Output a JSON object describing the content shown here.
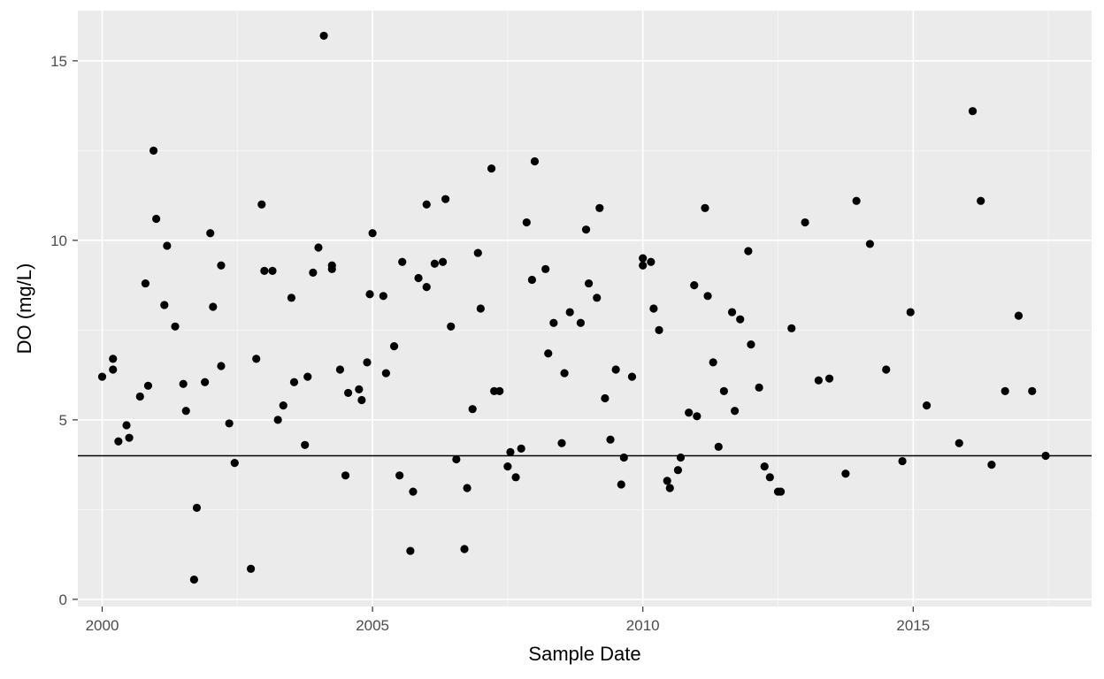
{
  "chart_data": {
    "type": "scatter",
    "xlabel": "Sample Date",
    "ylabel": "DO (mg/L)",
    "xlim": [
      1999.55,
      2018.3
    ],
    "ylim": [
      -0.2,
      16.4
    ],
    "x_ticks": [
      {
        "value": 2000,
        "label": "2000"
      },
      {
        "value": 2005,
        "label": "2005"
      },
      {
        "value": 2010,
        "label": "2010"
      },
      {
        "value": 2015,
        "label": "2015"
      }
    ],
    "y_ticks": [
      {
        "value": 0,
        "label": "0"
      },
      {
        "value": 5,
        "label": "5"
      },
      {
        "value": 10,
        "label": "10"
      },
      {
        "value": 15,
        "label": "15"
      }
    ],
    "reference_line": {
      "y": 4
    },
    "grid": true,
    "legend": "none",
    "colors": {
      "panel": "#ebebeb",
      "grid_major": "#ffffff",
      "grid_minor": "#f5f5f5",
      "point": "#000000",
      "reference_line": "#000000"
    },
    "points": [
      {
        "x": 2000.0,
        "y": 6.2
      },
      {
        "x": 2000.2,
        "y": 6.4
      },
      {
        "x": 2000.2,
        "y": 6.7
      },
      {
        "x": 2000.3,
        "y": 4.4
      },
      {
        "x": 2000.45,
        "y": 4.85
      },
      {
        "x": 2000.5,
        "y": 4.5
      },
      {
        "x": 2000.7,
        "y": 5.65
      },
      {
        "x": 2000.8,
        "y": 8.8
      },
      {
        "x": 2000.85,
        "y": 5.95
      },
      {
        "x": 2000.95,
        "y": 12.5
      },
      {
        "x": 2001.0,
        "y": 10.6
      },
      {
        "x": 2001.15,
        "y": 8.2
      },
      {
        "x": 2001.2,
        "y": 9.85
      },
      {
        "x": 2001.35,
        "y": 7.6
      },
      {
        "x": 2001.5,
        "y": 6.0
      },
      {
        "x": 2001.55,
        "y": 5.25
      },
      {
        "x": 2001.7,
        "y": 0.55
      },
      {
        "x": 2001.75,
        "y": 2.55
      },
      {
        "x": 2001.9,
        "y": 6.05
      },
      {
        "x": 2002.0,
        "y": 10.2
      },
      {
        "x": 2002.05,
        "y": 8.15
      },
      {
        "x": 2002.2,
        "y": 6.5
      },
      {
        "x": 2002.2,
        "y": 9.3
      },
      {
        "x": 2002.35,
        "y": 4.9
      },
      {
        "x": 2002.45,
        "y": 3.8
      },
      {
        "x": 2002.75,
        "y": 0.85
      },
      {
        "x": 2002.85,
        "y": 6.7
      },
      {
        "x": 2002.95,
        "y": 11.0
      },
      {
        "x": 2003.0,
        "y": 9.15
      },
      {
        "x": 2003.15,
        "y": 9.15
      },
      {
        "x": 2003.25,
        "y": 5.0
      },
      {
        "x": 2003.35,
        "y": 5.4
      },
      {
        "x": 2003.5,
        "y": 8.4
      },
      {
        "x": 2003.55,
        "y": 6.05
      },
      {
        "x": 2003.75,
        "y": 4.3
      },
      {
        "x": 2003.8,
        "y": 6.2
      },
      {
        "x": 2003.9,
        "y": 9.1
      },
      {
        "x": 2004.0,
        "y": 9.8
      },
      {
        "x": 2004.1,
        "y": 15.7
      },
      {
        "x": 2004.25,
        "y": 9.3
      },
      {
        "x": 2004.25,
        "y": 9.2
      },
      {
        "x": 2004.4,
        "y": 6.4
      },
      {
        "x": 2004.5,
        "y": 3.45
      },
      {
        "x": 2004.55,
        "y": 5.75
      },
      {
        "x": 2004.75,
        "y": 5.85
      },
      {
        "x": 2004.8,
        "y": 5.55
      },
      {
        "x": 2004.9,
        "y": 6.6
      },
      {
        "x": 2004.95,
        "y": 8.5
      },
      {
        "x": 2005.0,
        "y": 10.2
      },
      {
        "x": 2005.2,
        "y": 8.45
      },
      {
        "x": 2005.25,
        "y": 6.3
      },
      {
        "x": 2005.4,
        "y": 7.05
      },
      {
        "x": 2005.5,
        "y": 3.45
      },
      {
        "x": 2005.55,
        "y": 9.4
      },
      {
        "x": 2005.7,
        "y": 1.35
      },
      {
        "x": 2005.75,
        "y": 3.0
      },
      {
        "x": 2005.85,
        "y": 8.95
      },
      {
        "x": 2006.0,
        "y": 8.7
      },
      {
        "x": 2006.0,
        "y": 11.0
      },
      {
        "x": 2006.15,
        "y": 9.35
      },
      {
        "x": 2006.3,
        "y": 9.4
      },
      {
        "x": 2006.35,
        "y": 11.15
      },
      {
        "x": 2006.45,
        "y": 7.6
      },
      {
        "x": 2006.55,
        "y": 3.9
      },
      {
        "x": 2006.7,
        "y": 1.4
      },
      {
        "x": 2006.75,
        "y": 3.1
      },
      {
        "x": 2006.85,
        "y": 5.3
      },
      {
        "x": 2006.95,
        "y": 9.65
      },
      {
        "x": 2007.0,
        "y": 8.1
      },
      {
        "x": 2007.2,
        "y": 12.0
      },
      {
        "x": 2007.25,
        "y": 5.8
      },
      {
        "x": 2007.35,
        "y": 5.8
      },
      {
        "x": 2007.5,
        "y": 3.7
      },
      {
        "x": 2007.55,
        "y": 4.1
      },
      {
        "x": 2007.65,
        "y": 3.4
      },
      {
        "x": 2007.75,
        "y": 4.2
      },
      {
        "x": 2007.85,
        "y": 10.5
      },
      {
        "x": 2007.95,
        "y": 8.9
      },
      {
        "x": 2008.0,
        "y": 12.2
      },
      {
        "x": 2008.2,
        "y": 9.2
      },
      {
        "x": 2008.25,
        "y": 6.85
      },
      {
        "x": 2008.35,
        "y": 7.7
      },
      {
        "x": 2008.5,
        "y": 4.35
      },
      {
        "x": 2008.55,
        "y": 6.3
      },
      {
        "x": 2008.65,
        "y": 8.0
      },
      {
        "x": 2008.85,
        "y": 7.7
      },
      {
        "x": 2008.95,
        "y": 10.3
      },
      {
        "x": 2009.0,
        "y": 8.8
      },
      {
        "x": 2009.15,
        "y": 8.4
      },
      {
        "x": 2009.2,
        "y": 10.9
      },
      {
        "x": 2009.3,
        "y": 5.6
      },
      {
        "x": 2009.4,
        "y": 4.45
      },
      {
        "x": 2009.5,
        "y": 6.4
      },
      {
        "x": 2009.6,
        "y": 3.2
      },
      {
        "x": 2009.65,
        "y": 3.95
      },
      {
        "x": 2009.8,
        "y": 6.2
      },
      {
        "x": 2010.0,
        "y": 9.5
      },
      {
        "x": 2010.0,
        "y": 9.3
      },
      {
        "x": 2010.15,
        "y": 9.4
      },
      {
        "x": 2010.2,
        "y": 8.1
      },
      {
        "x": 2010.3,
        "y": 7.5
      },
      {
        "x": 2010.45,
        "y": 3.3
      },
      {
        "x": 2010.5,
        "y": 3.1
      },
      {
        "x": 2010.65,
        "y": 3.6
      },
      {
        "x": 2010.7,
        "y": 3.95
      },
      {
        "x": 2010.85,
        "y": 5.2
      },
      {
        "x": 2010.95,
        "y": 8.75
      },
      {
        "x": 2011.0,
        "y": 5.1
      },
      {
        "x": 2011.15,
        "y": 10.9
      },
      {
        "x": 2011.2,
        "y": 8.45
      },
      {
        "x": 2011.3,
        "y": 6.6
      },
      {
        "x": 2011.4,
        "y": 4.25
      },
      {
        "x": 2011.5,
        "y": 5.8
      },
      {
        "x": 2011.65,
        "y": 8.0
      },
      {
        "x": 2011.7,
        "y": 5.25
      },
      {
        "x": 2011.8,
        "y": 7.8
      },
      {
        "x": 2011.95,
        "y": 9.7
      },
      {
        "x": 2012.0,
        "y": 7.1
      },
      {
        "x": 2012.15,
        "y": 5.9
      },
      {
        "x": 2012.25,
        "y": 3.7
      },
      {
        "x": 2012.35,
        "y": 3.4
      },
      {
        "x": 2012.5,
        "y": 3.0
      },
      {
        "x": 2012.55,
        "y": 3.0
      },
      {
        "x": 2012.75,
        "y": 7.55
      },
      {
        "x": 2013.0,
        "y": 10.5
      },
      {
        "x": 2013.25,
        "y": 6.1
      },
      {
        "x": 2013.45,
        "y": 6.15
      },
      {
        "x": 2013.75,
        "y": 3.5
      },
      {
        "x": 2013.95,
        "y": 11.1
      },
      {
        "x": 2014.2,
        "y": 9.9
      },
      {
        "x": 2014.5,
        "y": 6.4
      },
      {
        "x": 2014.8,
        "y": 3.85
      },
      {
        "x": 2014.95,
        "y": 8.0
      },
      {
        "x": 2015.25,
        "y": 5.4
      },
      {
        "x": 2015.85,
        "y": 4.35
      },
      {
        "x": 2016.1,
        "y": 13.6
      },
      {
        "x": 2016.25,
        "y": 11.1
      },
      {
        "x": 2016.45,
        "y": 3.75
      },
      {
        "x": 2016.7,
        "y": 5.8
      },
      {
        "x": 2016.95,
        "y": 7.9
      },
      {
        "x": 2017.2,
        "y": 5.8
      },
      {
        "x": 2017.45,
        "y": 4.0
      }
    ]
  }
}
